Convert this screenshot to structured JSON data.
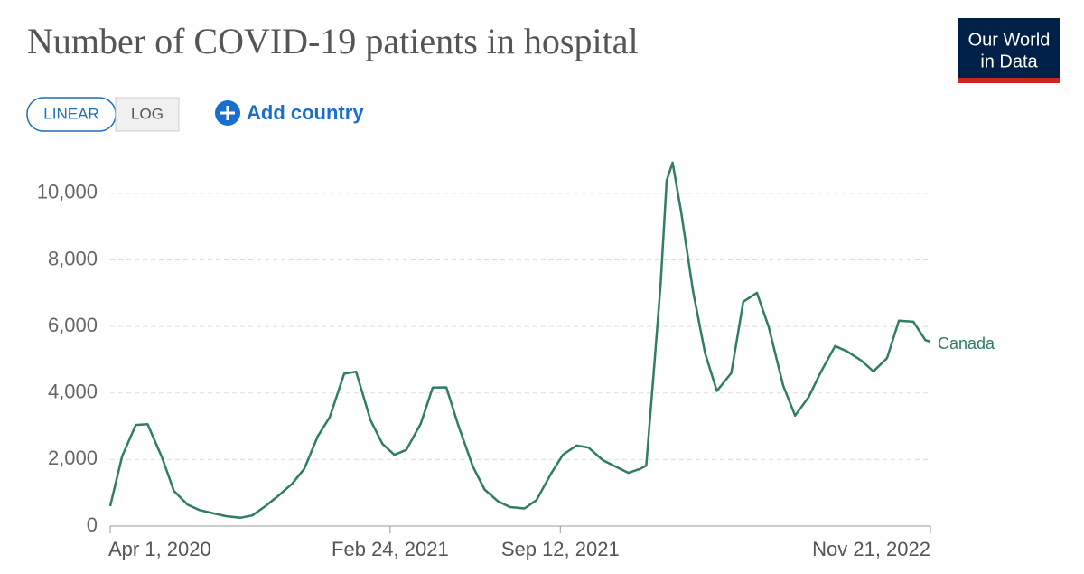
{
  "chart_data": {
    "type": "line",
    "title": "Number of COVID-19 patients in hospital",
    "logo_lines": [
      "Our World",
      "in Data"
    ],
    "scale_options": [
      "LINEAR",
      "LOG"
    ],
    "log_scale": false,
    "add_button": "Add country",
    "x": [
      "2020-04-01",
      "2020-04-15",
      "2020-05-01",
      "2020-05-15",
      "2020-06-01",
      "2020-06-15",
      "2020-07-01",
      "2020-07-15",
      "2020-08-01",
      "2020-08-15",
      "2020-09-01",
      "2020-09-15",
      "2020-10-01",
      "2020-10-15",
      "2020-11-01",
      "2020-11-15",
      "2020-12-01",
      "2020-12-15",
      "2021-01-01",
      "2021-01-15",
      "2021-02-01",
      "2021-02-15",
      "2021-03-01",
      "2021-03-15",
      "2021-04-01",
      "2021-04-15",
      "2021-05-01",
      "2021-05-15",
      "2021-06-01",
      "2021-06-15",
      "2021-07-01",
      "2021-07-15",
      "2021-08-01",
      "2021-08-15",
      "2021-09-01",
      "2021-09-15",
      "2021-10-01",
      "2021-10-15",
      "2021-11-01",
      "2021-11-15",
      "2021-12-01",
      "2021-12-15",
      "2021-12-22",
      "2022-01-01",
      "2022-01-08",
      "2022-01-15",
      "2022-01-22",
      "2022-02-01",
      "2022-02-15",
      "2022-03-01",
      "2022-03-15",
      "2022-04-01",
      "2022-04-15",
      "2022-05-01",
      "2022-05-15",
      "2022-06-01",
      "2022-06-15",
      "2022-07-01",
      "2022-07-15",
      "2022-08-01",
      "2022-08-15",
      "2022-09-01",
      "2022-09-15",
      "2022-10-01",
      "2022-10-15",
      "2022-11-01",
      "2022-11-15",
      "2022-11-21"
    ],
    "series": [
      {
        "name": "Canada",
        "color": "#2f7d62",
        "values": [
          600,
          2100,
          3040,
          3060,
          2050,
          1050,
          640,
          480,
          380,
          300,
          250,
          320,
          610,
          900,
          1280,
          1720,
          2700,
          3270,
          4580,
          4640,
          3180,
          2470,
          2140,
          2290,
          3080,
          4160,
          4170,
          3040,
          1800,
          1100,
          740,
          570,
          530,
          780,
          1570,
          2140,
          2420,
          2360,
          1980,
          1800,
          1600,
          1720,
          1820,
          5000,
          7300,
          10380,
          10920,
          9450,
          7060,
          5210,
          4060,
          4600,
          6740,
          7010,
          5980,
          4220,
          3320,
          3880,
          4620,
          5410,
          5250,
          4970,
          4650,
          5050,
          6170,
          6140,
          5590,
          5540
        ]
      }
    ],
    "xlim": [
      "2020-04-01",
      "2022-11-21"
    ],
    "xticks": [
      {
        "value": "2020-04-01",
        "label": "Apr 1, 2020"
      },
      {
        "value": "2021-02-24",
        "label": "Feb 24, 2021"
      },
      {
        "value": "2021-09-12",
        "label": "Sep 12, 2021"
      },
      {
        "value": "2022-11-21",
        "label": "Nov 21, 2022"
      }
    ],
    "ylim": [
      0,
      11000
    ],
    "yticks": [
      0,
      {
        "value": 2000,
        "label": "2,000"
      },
      {
        "value": 4000,
        "label": "4,000"
      },
      {
        "value": 6000,
        "label": "6,000"
      },
      {
        "value": 8000,
        "label": "8,000"
      },
      {
        "value": 10000,
        "label": "10,000"
      }
    ],
    "grid": true
  }
}
